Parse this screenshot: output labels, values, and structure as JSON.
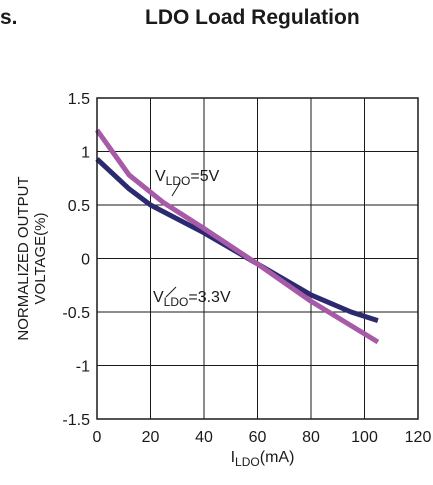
{
  "header": {
    "fragment": "s.",
    "title": "LDO Load Regulation"
  },
  "chart_data": {
    "type": "line",
    "title": "LDO Load Regulation",
    "xlabel": {
      "main": "I",
      "sub": "LDO",
      "rest": "(mA)"
    },
    "ylabel": [
      "NORMALIZED OUTPUT",
      "VOLTAGE(%)"
    ],
    "xlim": [
      0,
      120
    ],
    "ylim": [
      -1.5,
      1.5
    ],
    "x_ticks": [
      "0",
      "20",
      "40",
      "60",
      "80",
      "100",
      "120"
    ],
    "y_ticks": [
      "1.5",
      "1",
      "0.5",
      "0",
      "-0.5",
      "-1",
      "-1.5"
    ],
    "grid": true,
    "series": [
      {
        "label": {
          "main": "V",
          "sub": "LDO",
          "rest": "=3.3V"
        },
        "color": "#2b2a6e",
        "points": [
          [
            0,
            0.93
          ],
          [
            12,
            0.65
          ],
          [
            20,
            0.5
          ],
          [
            40,
            0.24
          ],
          [
            60,
            -0.05
          ],
          [
            80,
            -0.34
          ],
          [
            95,
            -0.5
          ],
          [
            105,
            -0.58
          ]
        ]
      },
      {
        "label": {
          "main": "V",
          "sub": "LDO",
          "rest": "=5V"
        },
        "color": "#a65aa8",
        "points": [
          [
            0,
            1.2
          ],
          [
            12,
            0.78
          ],
          [
            25,
            0.52
          ],
          [
            40,
            0.28
          ],
          [
            60,
            -0.05
          ],
          [
            80,
            -0.4
          ],
          [
            105,
            -0.78
          ]
        ]
      }
    ]
  }
}
